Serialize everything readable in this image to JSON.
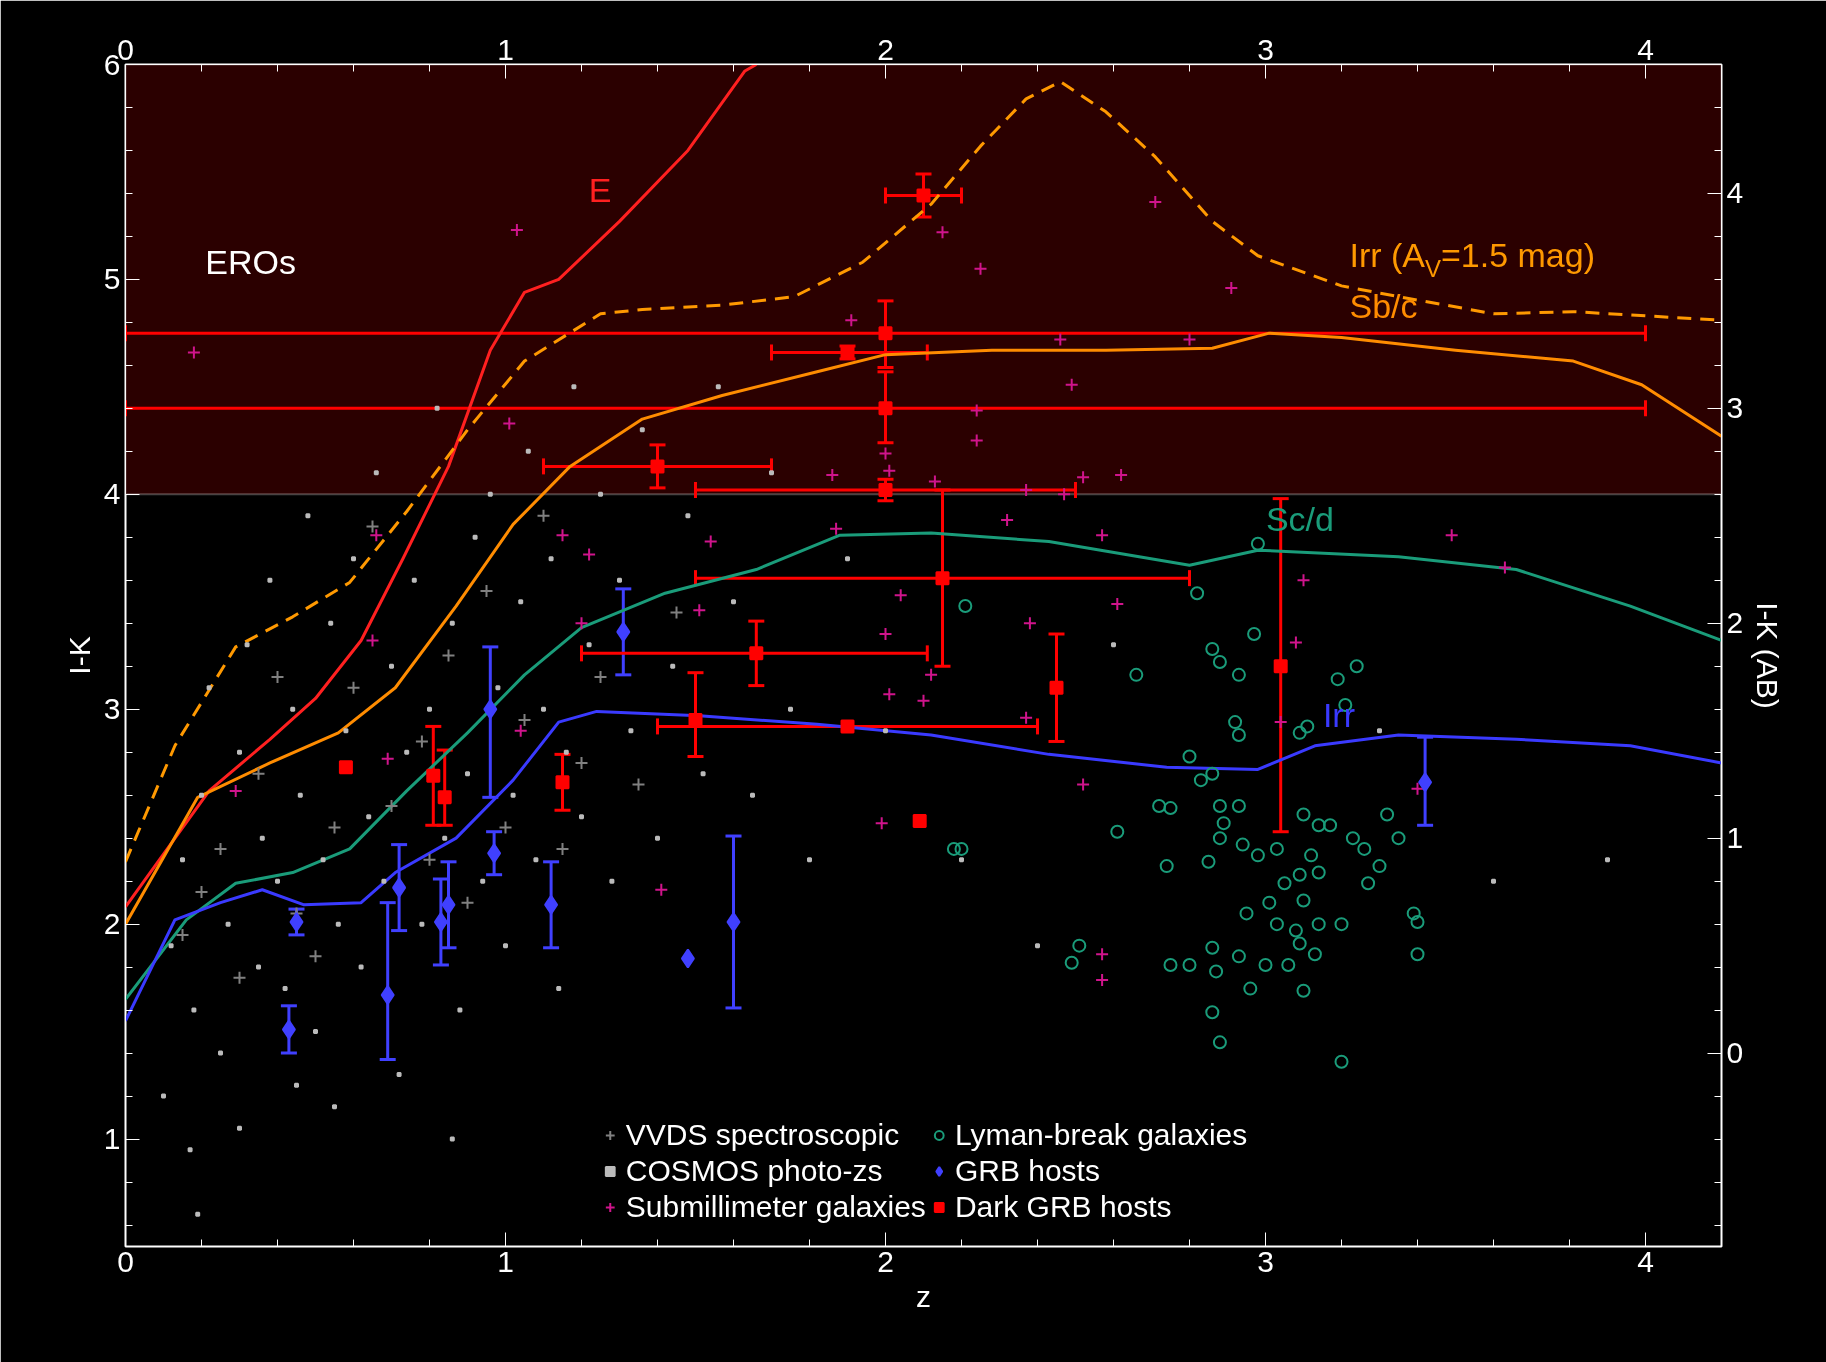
{
  "chart_data": {
    "type": "scatter",
    "xlabel": "z",
    "ylabel": "I-K",
    "y2label": "I-K (AB)",
    "xlim": [
      0,
      4.2
    ],
    "xticks": [
      0,
      1,
      2,
      3,
      4
    ],
    "x2lim": [
      0,
      4.2
    ],
    "x2ticks": [
      0,
      1,
      2,
      3,
      4
    ],
    "ylim": [
      0.5,
      6
    ],
    "yticks": [
      1,
      2,
      3,
      4,
      5,
      6
    ],
    "y2lim": [
      -0.9,
      4.6
    ],
    "y2ticks": [
      0,
      1,
      2,
      3,
      4
    ],
    "grid": false,
    "legend": "bottom",
    "bands": [
      {
        "axis": "y",
        "from": 4,
        "to": 6,
        "label": "EROs",
        "color": "#2b0000"
      }
    ],
    "series": [
      {
        "type": "line",
        "name": "E",
        "color": "#ff2020",
        "line_style": "solid",
        "x": [
          0,
          0.22,
          0.38,
          0.5,
          0.62,
          0.73,
          0.85,
          0.96,
          1.05,
          1.14,
          1.3,
          1.48,
          1.63,
          1.66
        ],
        "values": [
          2.08,
          2.62,
          2.86,
          3.05,
          3.32,
          3.7,
          4.13,
          4.67,
          4.94,
          5.0,
          5.27,
          5.6,
          5.97,
          6.0
        ]
      },
      {
        "type": "line",
        "name": "Irr (A$_{V}$=1.5 mag)",
        "color": "#ff9900",
        "line_style": "dashed",
        "x": [
          0,
          0.13,
          0.29,
          0.44,
          0.59,
          0.74,
          0.9,
          1.05,
          1.25,
          1.36,
          1.57,
          1.76,
          1.94,
          2.12,
          2.25,
          2.37,
          2.46,
          2.58,
          2.71,
          2.86,
          2.98,
          3.2,
          3.35,
          3.6,
          3.81,
          4.2
        ],
        "values": [
          2.29,
          2.83,
          3.29,
          3.43,
          3.59,
          3.92,
          4.3,
          4.62,
          4.84,
          4.86,
          4.88,
          4.92,
          5.08,
          5.35,
          5.62,
          5.84,
          5.92,
          5.78,
          5.57,
          5.27,
          5.11,
          4.97,
          4.92,
          4.84,
          4.85,
          4.81
        ]
      },
      {
        "type": "line",
        "name": "Sb/c",
        "color": "#ff8c00",
        "line_style": "solid",
        "x": [
          0,
          0.19,
          0.38,
          0.56,
          0.71,
          0.87,
          1.02,
          1.17,
          1.36,
          1.57,
          1.82,
          2.0,
          2.28,
          2.58,
          2.86,
          3.01,
          3.2,
          3.5,
          3.81,
          3.99,
          4.2
        ],
        "values": [
          2.0,
          2.59,
          2.75,
          2.89,
          3.1,
          3.48,
          3.86,
          4.13,
          4.35,
          4.46,
          4.57,
          4.65,
          4.67,
          4.67,
          4.68,
          4.75,
          4.73,
          4.67,
          4.62,
          4.51,
          4.27
        ]
      },
      {
        "type": "line",
        "name": "Sc/d",
        "color": "#1a9c7a",
        "line_style": "solid",
        "x": [
          0,
          0.16,
          0.29,
          0.44,
          0.59,
          0.74,
          0.9,
          1.05,
          1.2,
          1.42,
          1.66,
          1.88,
          2.12,
          2.43,
          2.8,
          2.98,
          3.35,
          3.66,
          3.96,
          4.2
        ],
        "values": [
          1.65,
          2.02,
          2.19,
          2.24,
          2.35,
          2.62,
          2.89,
          3.16,
          3.38,
          3.54,
          3.65,
          3.81,
          3.82,
          3.78,
          3.67,
          3.74,
          3.71,
          3.65,
          3.48,
          3.32
        ]
      },
      {
        "type": "line",
        "name": "Irr",
        "color": "#3a3aff",
        "line_style": "solid",
        "x": [
          0,
          0.13,
          0.25,
          0.36,
          0.47,
          0.62,
          0.71,
          0.87,
          1.02,
          1.14,
          1.24,
          1.51,
          1.82,
          2.12,
          2.43,
          2.74,
          2.98,
          3.13,
          3.35,
          3.66,
          3.96,
          4.2
        ],
        "values": [
          1.55,
          2.02,
          2.1,
          2.16,
          2.09,
          2.1,
          2.24,
          2.4,
          2.67,
          2.94,
          2.99,
          2.97,
          2.93,
          2.88,
          2.79,
          2.73,
          2.72,
          2.83,
          2.88,
          2.86,
          2.83,
          2.75
        ]
      },
      {
        "name": "VVDS spectroscopic",
        "color": "#808080",
        "marker": "cross",
        "x": [
          0.15,
          0.25,
          0.35,
          0.45,
          0.55,
          0.6,
          0.7,
          0.78,
          0.85,
          0.9,
          0.95,
          1.0,
          1.05,
          1.1,
          1.15,
          1.25,
          1.35,
          1.45,
          0.3,
          0.5,
          0.65,
          0.8,
          1.2,
          0.4,
          0.2
        ],
        "values": [
          1.95,
          2.35,
          2.7,
          2.05,
          2.45,
          3.1,
          2.55,
          2.85,
          3.25,
          2.1,
          3.55,
          2.45,
          2.95,
          3.9,
          2.35,
          3.15,
          2.65,
          3.45,
          1.75,
          1.85,
          3.85,
          2.3,
          2.75,
          3.15,
          2.15
        ]
      },
      {
        "name": "COSMOS photo-zs",
        "color": "#bbbbbb",
        "marker": "square",
        "x": [
          0.12,
          0.15,
          0.18,
          0.2,
          0.22,
          0.25,
          0.27,
          0.3,
          0.32,
          0.35,
          0.36,
          0.38,
          0.4,
          0.42,
          0.44,
          0.46,
          0.48,
          0.5,
          0.52,
          0.54,
          0.56,
          0.58,
          0.6,
          0.62,
          0.64,
          0.66,
          0.68,
          0.7,
          0.72,
          0.74,
          0.76,
          0.78,
          0.8,
          0.82,
          0.84,
          0.86,
          0.88,
          0.9,
          0.92,
          0.94,
          0.96,
          0.98,
          1.0,
          1.02,
          1.04,
          1.06,
          1.08,
          1.1,
          1.12,
          1.14,
          1.16,
          1.18,
          1.2,
          1.22,
          1.25,
          1.28,
          1.3,
          1.33,
          1.36,
          1.4,
          1.44,
          1.48,
          1.52,
          1.56,
          1.6,
          1.65,
          1.7,
          1.75,
          1.8,
          1.9,
          2.0,
          2.2,
          2.4,
          2.6,
          3.3,
          3.6,
          3.9,
          0.1,
          0.17,
          0.19,
          0.3,
          0.45,
          0.55,
          0.86
        ],
        "values": [
          1.9,
          2.3,
          1.6,
          2.6,
          3.1,
          1.4,
          2.0,
          2.8,
          3.3,
          1.8,
          2.4,
          3.6,
          2.2,
          1.7,
          3.0,
          2.6,
          3.9,
          1.5,
          2.3,
          3.4,
          2.0,
          2.9,
          3.7,
          1.8,
          2.5,
          4.1,
          2.2,
          3.2,
          1.3,
          2.8,
          3.6,
          2.0,
          3.0,
          4.4,
          2.4,
          3.4,
          1.6,
          2.7,
          3.8,
          2.2,
          4.0,
          3.1,
          1.9,
          2.6,
          3.5,
          4.2,
          2.3,
          3.0,
          3.7,
          1.7,
          2.8,
          4.5,
          2.5,
          3.3,
          4.0,
          2.2,
          3.6,
          2.9,
          4.3,
          2.4,
          3.2,
          3.9,
          2.7,
          4.5,
          3.5,
          2.6,
          4.1,
          3.0,
          2.3,
          3.7,
          2.9,
          2.3,
          1.9,
          3.3,
          2.9,
          2.2,
          2.3,
          1.2,
          0.95,
          0.65,
          1.05,
          1.25,
          1.15,
          1.0
        ]
      },
      {
        "name": "Submillimeter galaxies",
        "color": "#d0148c",
        "marker": "cross",
        "x": [
          0.18,
          1.03,
          1.01,
          0.66,
          0.65,
          0.69,
          0.29,
          1.04,
          1.15,
          1.22,
          1.2,
          1.41,
          1.54,
          1.51,
          1.91,
          1.86,
          1.87,
          2.0,
          2.01,
          2.0,
          2.01,
          2.04,
          2.12,
          2.1,
          2.13,
          2.15,
          2.25,
          2.24,
          2.24,
          2.32,
          2.37,
          2.38,
          2.37,
          2.46,
          2.49,
          2.47,
          2.52,
          2.57,
          2.62,
          2.61,
          2.52,
          2.57,
          2.57,
          2.71,
          2.8,
          2.91,
          3.1,
          3.08,
          3.04,
          3.4,
          3.49,
          3.63,
          1.99
        ],
        "values": [
          4.66,
          5.23,
          4.33,
          3.81,
          3.32,
          2.77,
          2.62,
          2.9,
          3.81,
          3.72,
          3.4,
          2.16,
          3.78,
          3.46,
          4.81,
          4.09,
          3.84,
          4.19,
          4.11,
          3.35,
          3.07,
          3.53,
          3.16,
          3.04,
          4.06,
          5.22,
          5.05,
          4.39,
          4.25,
          3.88,
          4.02,
          3.4,
          2.96,
          4.72,
          4.51,
          4.0,
          4.08,
          3.81,
          4.09,
          3.49,
          2.65,
          1.86,
          1.74,
          5.36,
          4.72,
          4.96,
          3.6,
          3.31,
          2.94,
          2.63,
          3.81,
          3.66,
          2.47
        ]
      },
      {
        "name": "Lyman-break galaxies",
        "color": "#1a9c7a",
        "marker": "circle",
        "x": [
          2.98,
          2.82,
          2.86,
          2.97,
          2.88,
          2.93,
          2.8,
          2.86,
          2.83,
          2.92,
          2.93,
          3.09,
          3.11,
          3.24,
          3.19,
          3.21,
          2.66,
          2.72,
          2.75,
          2.88,
          2.89,
          2.85,
          2.88,
          2.94,
          2.98,
          3.03,
          3.1,
          3.14,
          3.12,
          3.17,
          3.23,
          3.26,
          3.32,
          3.35,
          3.3,
          3.27,
          3.14,
          3.09,
          3.05,
          3.1,
          3.01,
          2.95,
          3.03,
          3.08,
          3.09,
          3.14,
          3.2,
          3.13,
          3.06,
          3.0,
          2.93,
          2.86,
          2.87,
          2.96,
          3.1,
          2.86,
          2.88,
          3.39,
          3.4,
          3.4,
          3.2,
          2.8,
          2.75,
          2.51,
          2.49,
          2.61,
          2.74,
          2.2,
          2.18,
          2.21,
          2.93
        ],
        "values": [
          3.77,
          3.54,
          3.28,
          3.35,
          3.22,
          3.16,
          2.78,
          2.7,
          2.67,
          2.94,
          2.88,
          2.89,
          2.92,
          3.2,
          3.14,
          3.02,
          3.16,
          2.55,
          2.54,
          2.55,
          2.47,
          2.29,
          2.4,
          2.37,
          2.32,
          2.35,
          2.51,
          2.46,
          2.32,
          2.46,
          2.4,
          2.35,
          2.51,
          2.4,
          2.27,
          2.19,
          2.24,
          2.23,
          2.19,
          2.11,
          2.1,
          2.05,
          2.0,
          1.97,
          1.91,
          2.0,
          2.0,
          1.86,
          1.81,
          1.81,
          1.85,
          1.89,
          1.78,
          1.7,
          1.69,
          1.59,
          1.45,
          2.05,
          2.01,
          1.86,
          1.36,
          1.81,
          1.81,
          1.9,
          1.82,
          2.43,
          2.27,
          2.35,
          2.35,
          3.48,
          2.55
        ]
      },
      {
        "name": "GRB hosts",
        "color": "#4040ff",
        "marker": "diamond",
        "x": [
          0.43,
          0.45,
          0.69,
          0.72,
          0.83,
          0.85,
          0.96,
          0.97,
          1.12,
          1.31,
          1.48,
          1.6,
          3.42
        ],
        "values": [
          1.51,
          2.01,
          1.67,
          2.17,
          2.01,
          2.09,
          3.0,
          2.33,
          2.09,
          3.36,
          1.84,
          2.01,
          2.66
        ],
        "errors": [
          [
            1.4,
            1.62
          ],
          [
            1.95,
            2.07
          ],
          [
            1.37,
            2.1
          ],
          [
            1.97,
            2.37
          ],
          [
            1.81,
            2.21
          ],
          [
            1.89,
            2.29
          ],
          [
            2.59,
            3.29
          ],
          [
            2.23,
            2.43
          ],
          [
            1.89,
            2.29
          ],
          [
            3.16,
            3.56
          ],
          null,
          [
            1.61,
            2.41
          ],
          [
            2.46,
            2.87
          ]
        ]
      },
      {
        "name": "Dark GRB hosts",
        "color": "#ff0000",
        "marker": "square",
        "x": [
          2.1,
          2.0,
          1.9,
          2.0,
          1.4,
          2.0,
          2.15,
          1.66,
          1.5,
          1.9,
          2.45,
          3.04,
          0.58,
          0.81,
          0.84,
          1.15,
          2.09
        ],
        "values": [
          5.39,
          4.75,
          4.66,
          4.4,
          4.13,
          4.02,
          3.61,
          3.26,
          2.95,
          2.92,
          3.1,
          3.2,
          2.73,
          2.69,
          2.59,
          2.66,
          2.48
        ],
        "errors": [
          [
            5.29,
            5.49
          ],
          [
            4.59,
            4.9
          ],
          [
            4.63,
            4.69
          ],
          [
            4.24,
            4.57
          ],
          [
            4.03,
            4.23
          ],
          [
            3.97,
            4.07
          ],
          [
            3.2,
            4.02
          ],
          [
            3.11,
            3.41
          ],
          [
            2.78,
            3.17
          ],
          null,
          [
            2.85,
            3.35
          ],
          [
            2.43,
            3.98
          ],
          null,
          [
            2.46,
            2.92
          ],
          [
            2.46,
            2.81
          ],
          [
            2.53,
            2.79
          ],
          null
        ],
        "xerrors": [
          [
            2.0,
            2.2
          ],
          [
            0,
            4
          ],
          [
            1.7,
            2.11
          ],
          [
            0,
            4
          ],
          [
            1.1,
            1.7
          ],
          [
            1.5,
            2.5
          ],
          [
            1.5,
            2.8
          ],
          [
            1.2,
            2.11
          ],
          null,
          [
            1.4,
            2.4
          ],
          null,
          null,
          null,
          null,
          null,
          null,
          null
        ]
      }
    ]
  }
}
